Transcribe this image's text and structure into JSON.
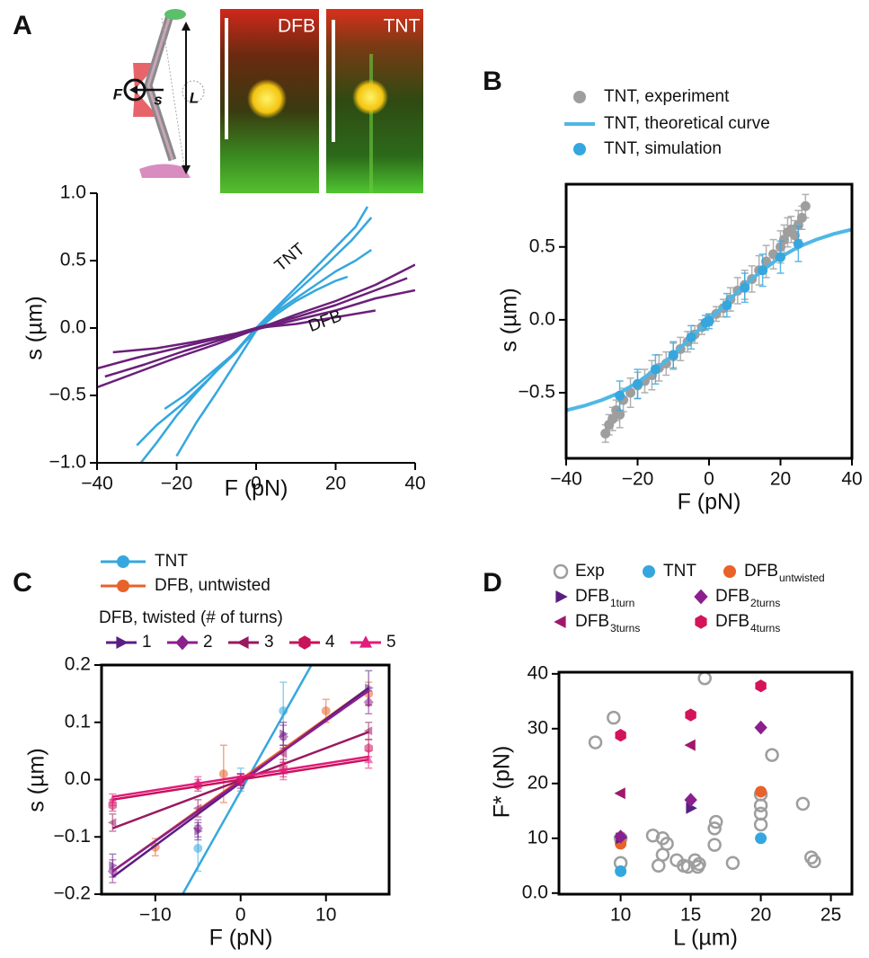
{
  "chart_data": [
    {
      "type": "line",
      "panel": "A",
      "xlabel": "F (pN)",
      "ylabel": "s (µm)",
      "images": [
        {
          "label": "DFB"
        },
        {
          "label": "TNT"
        }
      ],
      "schematic_labels": [
        "F",
        "s",
        "L"
      ],
      "annotations": [
        {
          "text": "TNT"
        },
        {
          "text": "DFB"
        }
      ],
      "xlim": [
        -40,
        40
      ],
      "ylim": [
        -1.0,
        1.0
      ],
      "xticks": [
        {
          "value": -40,
          "label": "−40"
        },
        {
          "value": -20,
          "label": "−20"
        },
        0,
        20,
        40
      ],
      "yticks": [
        {
          "value": 1.0,
          "label": "1.0"
        },
        0.5,
        {
          "value": 0,
          "label": "0.0"
        },
        {
          "value": -0.5,
          "label": "−0.5"
        },
        {
          "value": -1.0,
          "label": "−1.0"
        }
      ],
      "series": [
        {
          "color": "#35a7de",
          "x": [
            -29,
            -25,
            -20,
            -15,
            -10,
            -5,
            0,
            5,
            10,
            15,
            20,
            25,
            28
          ],
          "values": [
            -1.0,
            -0.85,
            -0.65,
            -0.48,
            -0.32,
            -0.18,
            0,
            0.15,
            0.3,
            0.45,
            0.6,
            0.75,
            0.9
          ]
        },
        {
          "color": "#35a7de",
          "x": [
            -30,
            -25,
            -18,
            -12,
            -6,
            0,
            6,
            12,
            18,
            24,
            29
          ],
          "values": [
            -0.87,
            -0.72,
            -0.55,
            -0.38,
            -0.2,
            -0.02,
            0.16,
            0.32,
            0.48,
            0.65,
            0.82
          ]
        },
        {
          "color": "#35a7de",
          "x": [
            -23,
            -18,
            -12,
            -6,
            0,
            5,
            10,
            15,
            20,
            25,
            29
          ],
          "values": [
            -0.6,
            -0.5,
            -0.35,
            -0.2,
            0,
            0.12,
            0.22,
            0.32,
            0.42,
            0.5,
            0.58
          ]
        },
        {
          "color": "#35a7de",
          "x": [
            -20,
            -15,
            -10,
            -5,
            0,
            5,
            10,
            15,
            20,
            23
          ],
          "values": [
            -0.95,
            -0.7,
            -0.48,
            -0.25,
            -0.02,
            0.1,
            0.2,
            0.28,
            0.35,
            0.38
          ]
        },
        {
          "color": "#6b1f7a",
          "x": [
            -40,
            -30,
            -20,
            -10,
            0,
            10,
            20,
            30,
            40
          ],
          "values": [
            -0.3,
            -0.22,
            -0.15,
            -0.08,
            -0.01,
            0.06,
            0.13,
            0.22,
            0.28
          ]
        },
        {
          "color": "#6b1f7a",
          "x": [
            -40,
            -30,
            -20,
            -10,
            0,
            10,
            20,
            30,
            40
          ],
          "values": [
            -0.44,
            -0.33,
            -0.22,
            -0.12,
            -0.01,
            0.1,
            0.2,
            0.32,
            0.47
          ]
        },
        {
          "color": "#6b1f7a",
          "x": [
            -38,
            -28,
            -18,
            -8,
            0,
            10,
            20,
            30,
            38
          ],
          "values": [
            -0.36,
            -0.27,
            -0.17,
            -0.08,
            0,
            0.08,
            0.17,
            0.28,
            0.37
          ]
        },
        {
          "color": "#6b1f7a",
          "x": [
            -36,
            -25,
            -15,
            -5,
            0,
            10,
            20,
            30
          ],
          "values": [
            -0.18,
            -0.15,
            -0.1,
            -0.04,
            0,
            0.03,
            0.08,
            0.13
          ]
        }
      ]
    },
    {
      "type": "scatter",
      "panel": "B",
      "xlabel": "F (pN)",
      "ylabel": "s (µm)",
      "xlim": [
        -40,
        40
      ],
      "ylim": [
        -0.95,
        0.93
      ],
      "xticks": [
        {
          "value": -40,
          "label": "−40"
        },
        {
          "value": -20,
          "label": "−20"
        },
        0,
        20,
        40
      ],
      "yticks": [
        {
          "value": -0.5,
          "label": "−0.5"
        },
        {
          "value": 0,
          "label": "0.0"
        },
        0.5
      ],
      "series": [
        {
          "name": "TNT, experiment",
          "mode": "markers",
          "marker": "circle",
          "color": "#9e9e9e",
          "x": [
            -29,
            -28,
            -27,
            -26,
            -25,
            -24,
            -22,
            -20,
            -18,
            -16,
            -14,
            -12,
            -10,
            -8,
            -6,
            -4,
            -2,
            0,
            2,
            4,
            6,
            8,
            10,
            12,
            14,
            16,
            18,
            20,
            21,
            22,
            23,
            24,
            25,
            26,
            27
          ],
          "values": [
            -0.78,
            -0.72,
            -0.68,
            -0.62,
            -0.65,
            -0.55,
            -0.5,
            -0.45,
            -0.42,
            -0.38,
            -0.33,
            -0.3,
            -0.25,
            -0.2,
            -0.15,
            -0.1,
            -0.05,
            0,
            0.04,
            0.08,
            0.14,
            0.2,
            0.24,
            0.28,
            0.34,
            0.4,
            0.45,
            0.5,
            0.55,
            0.6,
            0.62,
            0.58,
            0.65,
            0.7,
            0.78
          ],
          "errors": [
            0.06,
            0.07,
            0.08,
            0.07,
            0.09,
            0.08,
            0.1,
            0.09,
            0.08,
            0.1,
            0.09,
            0.08,
            0.09,
            0.08,
            0.07,
            0.06,
            0.05,
            0.04,
            0.05,
            0.06,
            0.08,
            0.09,
            0.1,
            0.09,
            0.1,
            0.11,
            0.1,
            0.11,
            0.1,
            0.1,
            0.09,
            0.1,
            0.1,
            0.08,
            0.08
          ]
        },
        {
          "name": "TNT, theoretical curve",
          "mode": "line",
          "color": "#4fb7e6",
          "x": [
            -40,
            -35,
            -30,
            -25,
            -20,
            -15,
            -10,
            -5,
            0,
            5,
            10,
            15,
            20,
            25,
            30,
            35,
            40
          ],
          "values": [
            -0.62,
            -0.59,
            -0.55,
            -0.5,
            -0.43,
            -0.34,
            -0.24,
            -0.12,
            0,
            0.12,
            0.24,
            0.34,
            0.43,
            0.5,
            0.55,
            0.59,
            0.62
          ]
        },
        {
          "name": "TNT, simulation",
          "mode": "markers",
          "marker": "circle",
          "color": "#35a7de",
          "x": [
            -25,
            -20,
            -15,
            -10,
            -5,
            -1,
            0,
            5,
            10,
            15,
            20,
            25
          ],
          "values": [
            -0.52,
            -0.44,
            -0.34,
            -0.24,
            -0.12,
            -0.02,
            -0.01,
            0.1,
            0.22,
            0.34,
            0.43,
            0.52
          ],
          "errors": [
            0.1,
            0.1,
            0.1,
            0.09,
            0.08,
            0.05,
            0.05,
            0.08,
            0.1,
            0.11,
            0.11,
            0.12
          ]
        }
      ]
    },
    {
      "type": "errorbar",
      "panel": "C",
      "xlabel": "F (pN)",
      "ylabel": "s (µm)",
      "legend_title": "DFB, twisted (# of turns)",
      "xlim": [
        -16.3,
        17.4
      ],
      "ylim": [
        -0.2,
        0.2
      ],
      "xticks": [
        {
          "value": -10,
          "label": "−10"
        },
        0,
        10
      ],
      "yticks": [
        {
          "value": -0.2,
          "label": "−0.2"
        },
        {
          "value": -0.1,
          "label": "−0.1"
        },
        {
          "value": 0,
          "label": "0.0"
        },
        0.1,
        0.2
      ],
      "series": [
        {
          "name": "TNT",
          "marker": "circle",
          "color": "#35a7de",
          "x": [
            -5,
            0,
            5
          ],
          "values": [
            -0.12,
            0,
            0.12
          ],
          "errors": [
            0.04,
            0.02,
            0.05
          ],
          "fit_x": [
            -6.8,
            8.3
          ],
          "fit_values": [
            -0.2,
            0.2
          ]
        },
        {
          "name": "DFB, untwisted",
          "marker": "circle",
          "color": "#e8622a",
          "x": [
            -10,
            -2,
            10,
            15
          ],
          "values": [
            -0.118,
            0.01,
            0.12,
            0.15
          ],
          "errors": [
            0.015,
            0.05,
            0.02,
            0.02
          ],
          "fit_x": [
            -15,
            15
          ],
          "fit_values": [
            -0.16,
            0.16
          ]
        },
        {
          "name": "1",
          "marker": "triangle-right",
          "color": "#5a1e82",
          "x": [
            -15,
            -5,
            0,
            5,
            15
          ],
          "values": [
            -0.15,
            -0.09,
            0,
            0.08,
            0.16
          ],
          "errors": [
            0.02,
            0.015,
            0.01,
            0.02,
            0.03
          ],
          "fit_x": [
            -15,
            15
          ],
          "fit_values": [
            -0.17,
            0.16
          ]
        },
        {
          "name": "2",
          "marker": "diamond",
          "color": "#8b1f8e",
          "x": [
            -15,
            -5,
            0,
            5,
            15
          ],
          "values": [
            -0.16,
            -0.085,
            0,
            0.075,
            0.135
          ],
          "errors": [
            0.02,
            0.015,
            0.01,
            0.02,
            0.02
          ],
          "fit_x": [
            -15,
            15
          ],
          "fit_values": [
            -0.16,
            0.155
          ]
        },
        {
          "name": "3",
          "marker": "triangle-left",
          "color": "#99195f",
          "x": [
            -15,
            -5,
            0,
            5,
            15
          ],
          "values": [
            -0.075,
            -0.05,
            -0.005,
            0.045,
            0.085
          ],
          "errors": [
            0.015,
            0.015,
            0.01,
            0.015,
            0.015
          ],
          "fit_x": [
            -15,
            15
          ],
          "fit_values": [
            -0.085,
            0.083
          ]
        },
        {
          "name": "4",
          "marker": "hexagon",
          "color": "#c8125a",
          "x": [
            -15,
            -5,
            0,
            5,
            15
          ],
          "values": [
            -0.045,
            -0.01,
            0,
            0.02,
            0.055
          ],
          "errors": [
            0.01,
            0.01,
            0.01,
            0.015,
            0.015
          ],
          "fit_x": [
            -15,
            15
          ],
          "fit_values": [
            -0.035,
            0.035
          ]
        },
        {
          "name": "5",
          "marker": "triangle-up",
          "color": "#e21b7c",
          "x": [
            -15,
            -5,
            0,
            5,
            15
          ],
          "values": [
            -0.035,
            -0.005,
            0,
            0.015,
            0.035
          ],
          "errors": [
            0.01,
            0.01,
            0.01,
            0.015,
            0.015
          ],
          "fit_x": [
            -15,
            15
          ],
          "fit_values": [
            -0.03,
            0.04
          ]
        }
      ]
    },
    {
      "type": "scatter",
      "panel": "D",
      "xlabel": "L (µm)",
      "ylabel": "F* (pN)",
      "xlim": [
        5.6,
        26.5
      ],
      "ylim": [
        -0.2,
        40.3
      ],
      "xticks": [
        10,
        15,
        20,
        25
      ],
      "yticks": [
        {
          "value": 0,
          "label": "0.0"
        },
        10,
        20,
        30,
        40
      ],
      "series": [
        {
          "name": "Exp",
          "mode": "markers",
          "marker": "open-circle",
          "color": "#9e9e9e",
          "x": [
            8.2,
            9.5,
            10,
            10,
            12.3,
            12.7,
            13,
            13.3,
            13,
            14,
            14.5,
            14.8,
            15.3,
            15.6,
            15.5,
            16,
            16.7,
            16.7,
            16.8,
            18,
            20,
            20,
            20,
            20,
            20.8,
            23,
            23.6,
            23.8
          ],
          "values": [
            27.5,
            32,
            5.5,
            10,
            10.5,
            5,
            10,
            9,
            7,
            6,
            5,
            4.8,
            6,
            5.3,
            4.8,
            39.2,
            8.8,
            11.8,
            13,
            5.5,
            12.5,
            14.5,
            16,
            18,
            25.2,
            16.3,
            6.5,
            5.8
          ]
        },
        {
          "name": "TNT",
          "mode": "markers",
          "marker": "circle",
          "color": "#35a7de",
          "x": [
            10,
            20
          ],
          "values": [
            4,
            10
          ]
        },
        {
          "name": "DFB",
          "name_sub": "untwisted",
          "mode": "markers",
          "marker": "circle",
          "color": "#e8622a",
          "x": [
            10,
            20
          ],
          "values": [
            9,
            18.5
          ]
        },
        {
          "name": "DFB",
          "name_sub": "1turn",
          "mode": "markers",
          "marker": "triangle-right",
          "color": "#5a1e82",
          "x": [
            10,
            15
          ],
          "values": [
            10,
            15.5
          ]
        },
        {
          "name": "DFB",
          "name_sub": "2turns",
          "mode": "markers",
          "marker": "diamond",
          "color": "#8b1f8e",
          "x": [
            10,
            15,
            20
          ],
          "values": [
            10.3,
            17,
            30.2
          ]
        },
        {
          "name": "DFB",
          "name_sub": "3turns",
          "mode": "markers",
          "marker": "triangle-left",
          "color": "#a0186c",
          "x": [
            10,
            15
          ],
          "values": [
            18.2,
            27
          ]
        },
        {
          "name": "DFB",
          "name_sub": "4turns",
          "mode": "markers",
          "marker": "hexagon",
          "color": "#d4145a",
          "x": [
            10,
            15,
            20
          ],
          "values": [
            28.8,
            32.5,
            37.8
          ]
        }
      ]
    }
  ]
}
